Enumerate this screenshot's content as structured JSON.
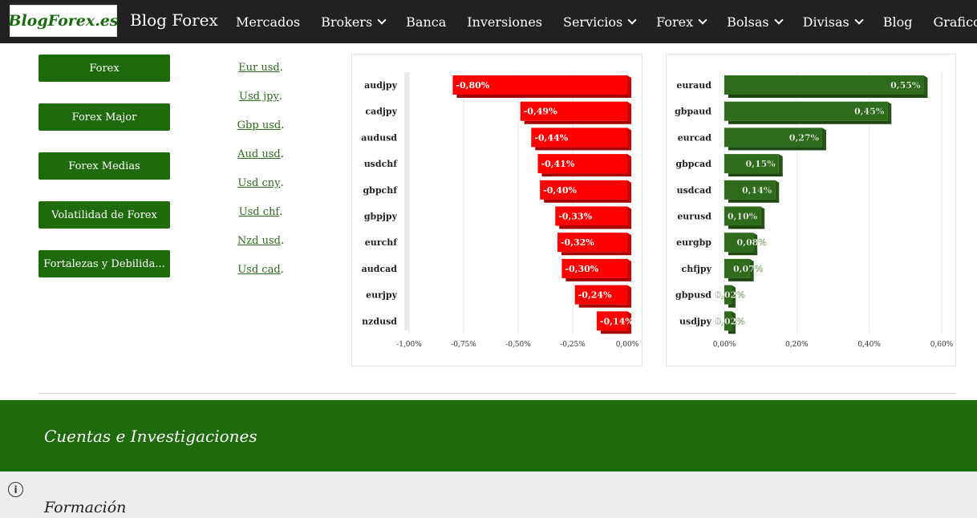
{
  "header": {
    "logo_text": "BlogForex.es",
    "site_title": "Blog Forex",
    "nav": [
      {
        "label": "Mercados",
        "dropdown": false
      },
      {
        "label": "Brokers",
        "dropdown": true
      },
      {
        "label": "Banca",
        "dropdown": false
      },
      {
        "label": "Inversiones",
        "dropdown": false
      },
      {
        "label": "Servicios",
        "dropdown": true
      },
      {
        "label": "Forex",
        "dropdown": true
      },
      {
        "label": "Bolsas",
        "dropdown": true
      },
      {
        "label": "Divisas",
        "dropdown": true
      },
      {
        "label": "Blog",
        "dropdown": false
      },
      {
        "label": "Graficos",
        "dropdown": false
      }
    ]
  },
  "sidebar": {
    "buttons": [
      "Forex",
      "Forex Major",
      "Forex Medias",
      "Volatilidad de Forex",
      "Fortalezas y Debilida..."
    ]
  },
  "pairs": {
    "links": [
      "Eur usd",
      "Usd jpy",
      "Gbp usd",
      "Aud usd",
      "Usd cny",
      "Usd chf",
      "Nzd usd",
      "Usd cad"
    ],
    "suffix": "."
  },
  "chart_data": [
    {
      "type": "bar",
      "orientation": "horizontal",
      "categories": [
        "audjpy",
        "cadjpy",
        "audusd",
        "usdchf",
        "gbpchf",
        "gbpjpy",
        "eurchf",
        "audcad",
        "eurjpy",
        "nzdusd"
      ],
      "values": [
        -0.8,
        -0.49,
        -0.44,
        -0.41,
        -0.4,
        -0.33,
        -0.32,
        -0.3,
        -0.24,
        -0.14
      ],
      "labels": [
        "-0,80%",
        "-0,49%",
        "-0,44%",
        "-0,41%",
        "-0,40%",
        "-0,33%",
        "-0,32%",
        "-0,30%",
        "-0,24%",
        "-0,14%"
      ],
      "xlim": [
        -1.0,
        0.0
      ],
      "ticks": [
        -1.0,
        -0.75,
        -0.5,
        -0.25,
        0.0
      ],
      "tick_labels": [
        "-1,00%",
        "-0,75%",
        "-0,50%",
        "-0,25%",
        "0,00%"
      ],
      "color": "#ff0000",
      "grid": true
    },
    {
      "type": "bar",
      "orientation": "horizontal",
      "categories": [
        "euraud",
        "gbpaud",
        "eurcad",
        "gbpcad",
        "usdcad",
        "eurusd",
        "eurgbp",
        "chfjpy",
        "gbpusd",
        "usdjpy"
      ],
      "values": [
        0.55,
        0.45,
        0.27,
        0.15,
        0.14,
        0.1,
        0.08,
        0.07,
        0.02,
        0.02
      ],
      "labels": [
        "0,55%",
        "0,45%",
        "0,27%",
        "0,15%",
        "0,14%",
        "0,10%",
        "0,08%",
        "0,07%",
        "0,02%",
        "0,02%"
      ],
      "xlim": [
        0.0,
        0.6
      ],
      "ticks": [
        0.0,
        0.2,
        0.4,
        0.6
      ],
      "tick_labels": [
        "0,00%",
        "0,20%",
        "0,40%",
        "0,60%"
      ],
      "color": "#2e6b1a",
      "grid": true
    }
  ],
  "footer": {
    "section1_title": "Cuentas e Investigaciones",
    "section2_title": "Formación",
    "info_glyph": "i"
  },
  "colors": {
    "brand_green": "#1e6b0c",
    "topbar": "#212121",
    "negative_bar": "#ff0000",
    "positive_bar": "#2e6b1a"
  }
}
